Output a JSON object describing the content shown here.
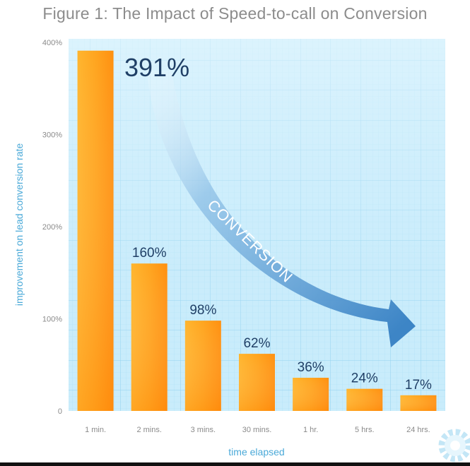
{
  "chart_data": {
    "type": "bar",
    "title": "Figure 1: The Impact of Speed-to-call on Conversion",
    "categories": [
      "1 min.",
      "2 mins.",
      "3 mins.",
      "30 mins.",
      "1 hr.",
      "5 hrs.",
      "24 hrs."
    ],
    "values": [
      391,
      160,
      98,
      62,
      36,
      24,
      17
    ],
    "data_labels": [
      "391%",
      "160%",
      "98%",
      "62%",
      "36%",
      "24%",
      "17%"
    ],
    "xlabel": "time elapsed",
    "ylabel": "improvement on lead conversion rate",
    "ylim": [
      0,
      400
    ],
    "yticks": [
      {
        "value": 0,
        "label": "0"
      },
      {
        "value": 100,
        "label": "100%"
      },
      {
        "value": 200,
        "label": "200%"
      },
      {
        "value": 300,
        "label": "300%"
      },
      {
        "value": 400,
        "label": "400%"
      }
    ],
    "grid": true,
    "annotation": "CONVERSION",
    "colors": {
      "bar": "#ff9b1a",
      "bar_light": "#ffba3c",
      "plot_bg": "#c9ecfb",
      "grid": "#9fd8f2",
      "label": "#1f3f66",
      "axis_text": "#4aa9d8",
      "arrow": "#4d95cf"
    }
  },
  "decorations": {
    "gear_icon": "gear-icon"
  }
}
